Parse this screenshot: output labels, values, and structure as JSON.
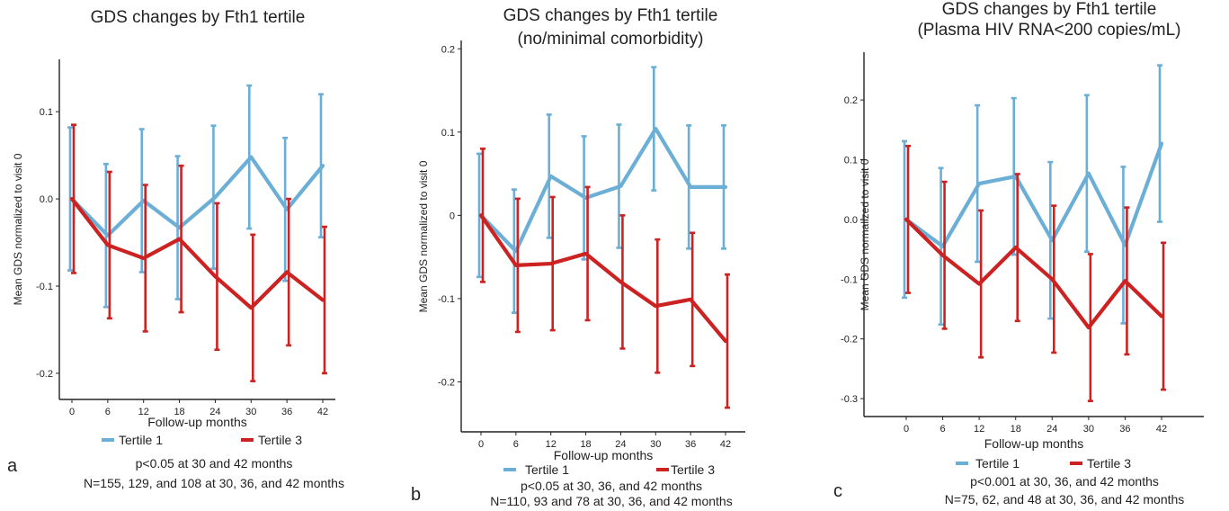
{
  "colors": {
    "tertile1": "#6baed6",
    "tertile3": "#cc2222"
  },
  "chart_data": [
    {
      "type": "line",
      "panel_letter": "a",
      "title": [
        "GDS changes by Fth1 tertile"
      ],
      "xlabel": "Follow-up months",
      "ylabel": "Mean GDS normalized to visit 0",
      "x": [
        0,
        6,
        12,
        18,
        24,
        30,
        36,
        42
      ],
      "ylim": [
        -0.23,
        0.16
      ],
      "yticks": [
        -0.2,
        -0.1,
        0.0,
        0.1
      ],
      "ytick_labels": [
        "-0.2",
        "-0.1",
        "0.0",
        "0.1"
      ],
      "grid": false,
      "legend_position": "bottom",
      "series": [
        {
          "name": "Tertile 1",
          "color_key": "tertile1",
          "values": [
            0.0,
            -0.042,
            -0.002,
            -0.033,
            0.002,
            0.048,
            -0.012,
            0.038
          ],
          "lower": [
            -0.082,
            -0.124,
            -0.084,
            -0.115,
            -0.08,
            -0.034,
            -0.094,
            -0.044
          ],
          "upper": [
            0.082,
            0.04,
            0.08,
            0.049,
            0.084,
            0.13,
            0.07,
            0.12
          ]
        },
        {
          "name": "Tertile 3",
          "color_key": "tertile3",
          "values": [
            0.0,
            -0.053,
            -0.068,
            -0.046,
            -0.089,
            -0.125,
            -0.084,
            -0.116
          ],
          "lower": [
            -0.085,
            -0.137,
            -0.152,
            -0.13,
            -0.173,
            -0.209,
            -0.168,
            -0.2
          ],
          "upper": [
            0.085,
            0.031,
            0.016,
            0.038,
            -0.005,
            -0.041,
            0.0,
            -0.032
          ]
        }
      ],
      "notes": [
        "p<0.05 at 30 and 42 months",
        "N=155, 129, and 108 at 30, 36, and 42 months"
      ]
    },
    {
      "type": "line",
      "panel_letter": "b",
      "title": [
        "GDS changes by Fth1 tertile",
        "(no/minimal comorbidity)"
      ],
      "xlabel": "Follow-up months",
      "ylabel": "Mean GDS normalized to visit 0",
      "x": [
        0,
        6,
        12,
        18,
        24,
        30,
        36,
        42
      ],
      "ylim": [
        -0.26,
        0.21
      ],
      "yticks": [
        -0.2,
        -0.1,
        0.0,
        0.1,
        0.2
      ],
      "ytick_labels": [
        "-0.2",
        "-0.1",
        "0",
        "0.1",
        "0.2"
      ],
      "grid": false,
      "legend_position": "bottom",
      "series": [
        {
          "name": "Tertile 1",
          "color_key": "tertile1",
          "values": [
            0.0,
            -0.043,
            0.047,
            0.021,
            0.035,
            0.104,
            0.034,
            0.034
          ],
          "lower": [
            -0.074,
            -0.117,
            -0.027,
            -0.053,
            -0.039,
            0.03,
            -0.04,
            -0.04
          ],
          "upper": [
            0.074,
            0.031,
            0.121,
            0.095,
            0.109,
            0.178,
            0.108,
            0.108
          ]
        },
        {
          "name": "Tertile 3",
          "color_key": "tertile3",
          "values": [
            0.0,
            -0.06,
            -0.058,
            -0.046,
            -0.08,
            -0.109,
            -0.101,
            -0.151
          ],
          "lower": [
            -0.08,
            -0.14,
            -0.138,
            -0.126,
            -0.16,
            -0.189,
            -0.181,
            -0.231
          ],
          "upper": [
            0.08,
            0.02,
            0.022,
            0.034,
            0.0,
            -0.029,
            -0.021,
            -0.071
          ]
        }
      ],
      "notes": [
        "p<0.05 at 30, 36, and 42 months",
        "N=110, 93 and 78 at 30, 36, and 42 months"
      ]
    },
    {
      "type": "line",
      "panel_letter": "c",
      "title": [
        "GDS changes by Fth1 tertile",
        "(Plasma HIV RNA<200 copies/mL)"
      ],
      "xlabel": "Follow-up months",
      "ylabel": "Mean GDS normalized to visit 0",
      "x": [
        0,
        6,
        12,
        18,
        24,
        30,
        36,
        42
      ],
      "ylim": [
        -0.33,
        0.28
      ],
      "yticks": [
        -0.3,
        -0.2,
        -0.1,
        0.0,
        0.1,
        0.2
      ],
      "ytick_labels": [
        "-0.3",
        "-0.2",
        "-0.1",
        "0.0",
        "0.1",
        "0.2"
      ],
      "grid": false,
      "legend_position": "bottom",
      "series": [
        {
          "name": "Tertile 1",
          "color_key": "tertile1",
          "values": [
            0.0,
            -0.045,
            0.06,
            0.072,
            -0.035,
            0.077,
            -0.043,
            0.127
          ],
          "lower": [
            -0.131,
            -0.176,
            -0.071,
            -0.059,
            -0.166,
            -0.054,
            -0.174,
            -0.004
          ],
          "upper": [
            0.131,
            0.086,
            0.191,
            0.203,
            0.096,
            0.208,
            0.088,
            0.258
          ]
        },
        {
          "name": "Tertile 3",
          "color_key": "tertile3",
          "values": [
            0.0,
            -0.06,
            -0.108,
            -0.047,
            -0.1,
            -0.181,
            -0.103,
            -0.162
          ],
          "lower": [
            -0.123,
            -0.183,
            -0.231,
            -0.17,
            -0.223,
            -0.304,
            -0.226,
            -0.285
          ],
          "upper": [
            0.123,
            0.063,
            0.015,
            0.076,
            0.023,
            -0.058,
            0.02,
            -0.039
          ]
        }
      ],
      "notes": [
        "p<0.001 at 30, 36, and 42 months",
        "N=75, 62, and 48 at 30, 36, and 42 months"
      ]
    }
  ]
}
